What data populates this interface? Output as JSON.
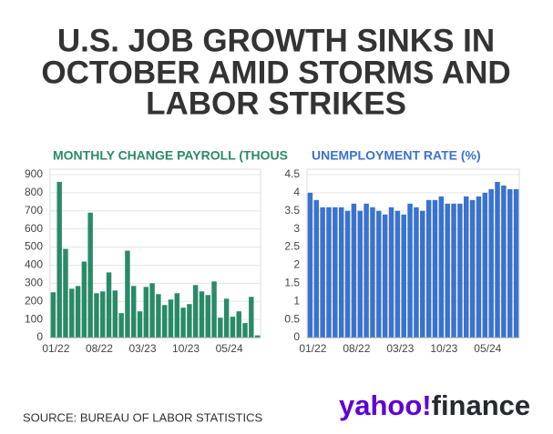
{
  "header": {
    "title_lines": [
      "U.S. JOB GROWTH SINKS IN",
      "OCTOBER AMID STORMS AND",
      "LABOR STRIKES"
    ]
  },
  "chart_data": [
    {
      "type": "bar",
      "title": "MONTHLY CHANGE PAYROLL (THOUS",
      "color": "#2a8a68",
      "categories": [
        "01/22",
        null,
        null,
        null,
        null,
        null,
        null,
        "08/22",
        null,
        null,
        null,
        null,
        null,
        null,
        "03/23",
        null,
        null,
        null,
        null,
        null,
        null,
        "10/23",
        null,
        null,
        null,
        null,
        null,
        null,
        "05/24",
        null,
        null,
        null,
        null,
        null
      ],
      "values": [
        250,
        860,
        490,
        270,
        285,
        420,
        690,
        245,
        255,
        360,
        260,
        135,
        480,
        285,
        145,
        280,
        300,
        240,
        180,
        210,
        245,
        165,
        185,
        290,
        255,
        235,
        310,
        110,
        215,
        115,
        145,
        80,
        225,
        12
      ],
      "ylim": [
        0,
        900
      ],
      "yticks": [
        0,
        100,
        200,
        300,
        400,
        500,
        600,
        700,
        800,
        900
      ],
      "grid": true
    },
    {
      "type": "bar",
      "title": "UNEMPLOYMENT RATE (%)",
      "color": "#3a72d0",
      "categories": [
        "01/22",
        null,
        null,
        null,
        null,
        null,
        null,
        "08/22",
        null,
        null,
        null,
        null,
        null,
        null,
        "03/23",
        null,
        null,
        null,
        null,
        null,
        null,
        "10/23",
        null,
        null,
        null,
        null,
        null,
        null,
        "05/24",
        null,
        null,
        null,
        null,
        null
      ],
      "values": [
        4.0,
        3.8,
        3.6,
        3.6,
        3.6,
        3.6,
        3.5,
        3.7,
        3.5,
        3.7,
        3.6,
        3.5,
        3.4,
        3.6,
        3.5,
        3.4,
        3.7,
        3.6,
        3.5,
        3.8,
        3.8,
        3.9,
        3.7,
        3.7,
        3.7,
        3.9,
        3.8,
        3.9,
        4.0,
        4.1,
        4.3,
        4.2,
        4.1,
        4.1
      ],
      "ylim": [
        0,
        4.5
      ],
      "yticks": [
        0,
        0.5,
        1,
        1.5,
        2,
        2.5,
        3,
        3.5,
        4,
        4.5
      ],
      "grid": true
    }
  ],
  "footer": {
    "source": "SOURCE: BUREAU OF LABOR STATISTICS",
    "logo": {
      "brand": "yahoo!",
      "product": "finance"
    }
  }
}
